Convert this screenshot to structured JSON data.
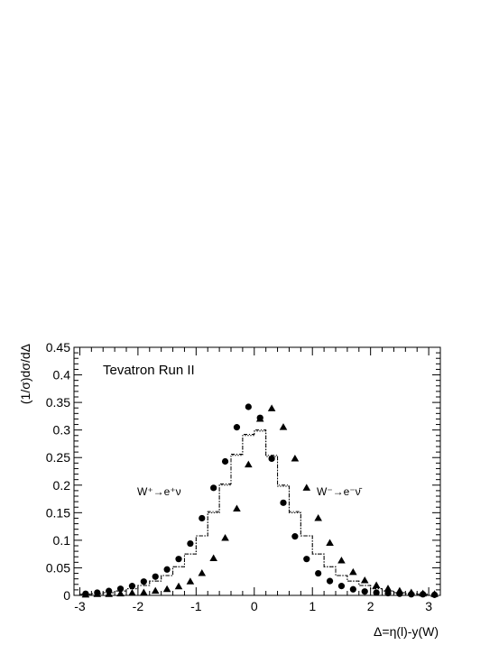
{
  "chart_data": {
    "type": "scatter",
    "xlabel": "Δ=η(l)-y(W)",
    "ylabel": "(1/σ)dσ/dΔ",
    "xlim": [
      -3.1,
      3.2
    ],
    "ylim": [
      0,
      0.45
    ],
    "x_ticks": [
      "-3",
      "-2",
      "-1",
      "0",
      "1",
      "2",
      "3"
    ],
    "y_ticks": [
      "0",
      "0.05",
      "0.1",
      "0.15",
      "0.2",
      "0.25",
      "0.3",
      "0.35",
      "0.4",
      "0.45"
    ],
    "annotations": {
      "title": "Tevatron Run II",
      "wplus_label": "W⁺→e⁺ν",
      "wminus_label": "W⁻→e⁻ν̄"
    },
    "series": [
      {
        "marker": "circle",
        "x": [
          -2.9,
          -2.7,
          -2.5,
          -2.3,
          -2.1,
          -1.9,
          -1.7,
          -1.5,
          -1.3,
          -1.1,
          -0.9,
          -0.7,
          -0.5,
          -0.3,
          -0.1,
          0.1,
          0.3,
          0.5,
          0.7,
          0.9,
          1.1,
          1.3,
          1.5,
          1.7,
          1.9,
          2.1,
          2.3,
          2.5,
          2.7,
          2.9,
          3.1
        ],
        "y": [
          0.003,
          0.005,
          0.008,
          0.012,
          0.017,
          0.025,
          0.034,
          0.047,
          0.066,
          0.094,
          0.14,
          0.195,
          0.243,
          0.305,
          0.342,
          0.322,
          0.248,
          0.168,
          0.107,
          0.066,
          0.04,
          0.026,
          0.017,
          0.011,
          0.007,
          0.005,
          0.004,
          0.003,
          0.002,
          0.002,
          0.001
        ]
      },
      {
        "marker": "triangle",
        "x": [
          -2.9,
          -2.7,
          -2.5,
          -2.3,
          -2.1,
          -1.9,
          -1.7,
          -1.5,
          -1.3,
          -1.1,
          -0.9,
          -0.7,
          -0.5,
          -0.3,
          -0.1,
          0.1,
          0.3,
          0.5,
          0.7,
          0.9,
          1.1,
          1.3,
          1.5,
          1.7,
          1.9,
          2.1,
          2.3,
          2.5,
          2.7,
          2.9,
          3.1
        ],
        "y": [
          0.001,
          0.002,
          0.002,
          0.003,
          0.004,
          0.005,
          0.008,
          0.011,
          0.016,
          0.025,
          0.04,
          0.067,
          0.104,
          0.157,
          0.237,
          0.32,
          0.339,
          0.305,
          0.248,
          0.195,
          0.14,
          0.095,
          0.063,
          0.042,
          0.027,
          0.018,
          0.012,
          0.008,
          0.005,
          0.003,
          0.002
        ]
      },
      {
        "style": "dotted-step",
        "edges": [
          -3.0,
          -2.8,
          -2.6,
          -2.4,
          -2.2,
          -2.0,
          -1.8,
          -1.6,
          -1.4,
          -1.2,
          -1.0,
          -0.8,
          -0.6,
          -0.4,
          -0.2,
          0.0,
          0.2,
          0.4,
          0.6,
          0.8,
          1.0,
          1.2,
          1.4,
          1.6,
          1.8,
          2.0,
          2.2,
          2.4,
          2.6,
          2.8,
          3.0
        ],
        "values": [
          0.002,
          0.003,
          0.005,
          0.008,
          0.012,
          0.018,
          0.026,
          0.036,
          0.052,
          0.075,
          0.108,
          0.15,
          0.2,
          0.254,
          0.29,
          0.298,
          0.252,
          0.198,
          0.15,
          0.108,
          0.075,
          0.052,
          0.036,
          0.026,
          0.018,
          0.012,
          0.008,
          0.005,
          0.003,
          0.002
        ]
      },
      {
        "style": "dashdot-step",
        "edges": [
          -3.0,
          -2.8,
          -2.6,
          -2.4,
          -2.2,
          -2.0,
          -1.8,
          -1.6,
          -1.4,
          -1.2,
          -1.0,
          -0.8,
          -0.6,
          -0.4,
          -0.2,
          0.0,
          0.2,
          0.4,
          0.6,
          0.8,
          1.0,
          1.2,
          1.4,
          1.6,
          1.8,
          2.0,
          2.2,
          2.4,
          2.6,
          2.8,
          3.0
        ],
        "values": [
          0.002,
          0.003,
          0.005,
          0.008,
          0.012,
          0.018,
          0.026,
          0.036,
          0.052,
          0.075,
          0.108,
          0.152,
          0.202,
          0.256,
          0.292,
          0.3,
          0.254,
          0.2,
          0.152,
          0.108,
          0.075,
          0.052,
          0.036,
          0.026,
          0.018,
          0.012,
          0.008,
          0.005,
          0.003,
          0.002
        ]
      }
    ]
  }
}
